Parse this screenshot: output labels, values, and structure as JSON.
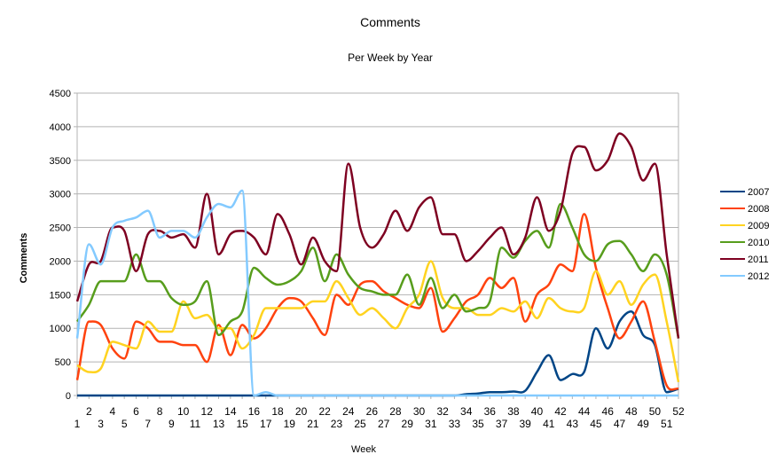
{
  "chart_data": {
    "type": "line",
    "title": "Comments",
    "subtitle": "Per Week by Year",
    "xlabel": "Week",
    "ylabel": "Comments",
    "ylim": [
      0,
      4500
    ],
    "yticks": [
      0,
      500,
      1000,
      1500,
      2000,
      2500,
      3000,
      3500,
      4000,
      4500
    ],
    "x": [
      1,
      2,
      3,
      4,
      5,
      6,
      7,
      8,
      9,
      10,
      11,
      12,
      13,
      14,
      15,
      16,
      17,
      18,
      19,
      20,
      21,
      22,
      23,
      24,
      25,
      26,
      27,
      28,
      29,
      30,
      31,
      32,
      33,
      34,
      35,
      36,
      37,
      38,
      39,
      40,
      41,
      42,
      43,
      44,
      45,
      46,
      47,
      48,
      49,
      50,
      51,
      52
    ],
    "grid": true,
    "legend_position": "right",
    "series": [
      {
        "name": "2007",
        "color": "#004586",
        "values": [
          0,
          0,
          0,
          0,
          0,
          0,
          0,
          0,
          0,
          0,
          0,
          0,
          0,
          0,
          0,
          0,
          0,
          0,
          0,
          0,
          0,
          0,
          0,
          0,
          0,
          0,
          0,
          0,
          0,
          0,
          0,
          0,
          0,
          20,
          30,
          50,
          50,
          60,
          70,
          350,
          600,
          230,
          320,
          350,
          1000,
          700,
          1100,
          1250,
          900,
          750,
          50,
          100
        ]
      },
      {
        "name": "2008",
        "color": "#ff420e",
        "values": [
          230,
          1100,
          1050,
          700,
          550,
          1100,
          1000,
          800,
          800,
          750,
          750,
          500,
          1050,
          600,
          1050,
          850,
          1000,
          1300,
          1450,
          1400,
          1150,
          900,
          1500,
          1350,
          1650,
          1700,
          1550,
          1450,
          1350,
          1300,
          1600,
          950,
          1150,
          1400,
          1500,
          1750,
          1600,
          1750,
          1100,
          1500,
          1650,
          1950,
          1850,
          2700,
          1900,
          1300,
          850,
          1100,
          1400,
          800,
          150,
          100
        ]
      },
      {
        "name": "2009",
        "color": "#ffd320",
        "values": [
          450,
          350,
          400,
          800,
          750,
          700,
          1100,
          950,
          950,
          1400,
          1150,
          1200,
          1000,
          1000,
          700,
          900,
          1300,
          1300,
          1300,
          1300,
          1400,
          1400,
          1700,
          1450,
          1200,
          1300,
          1150,
          1000,
          1300,
          1500,
          2000,
          1450,
          1300,
          1300,
          1200,
          1200,
          1300,
          1250,
          1400,
          1150,
          1450,
          1300,
          1250,
          1300,
          1850,
          1500,
          1700,
          1350,
          1650,
          1800,
          1100,
          200
        ]
      },
      {
        "name": "2010",
        "color": "#579d1c",
        "values": [
          1100,
          1350,
          1700,
          1700,
          1700,
          2100,
          1700,
          1700,
          1450,
          1350,
          1400,
          1700,
          900,
          1100,
          1250,
          1900,
          1750,
          1650,
          1700,
          1850,
          2200,
          1700,
          2100,
          1800,
          1600,
          1550,
          1500,
          1500,
          1800,
          1350,
          1750,
          1300,
          1500,
          1250,
          1300,
          1400,
          2200,
          2050,
          2300,
          2450,
          2200,
          2850,
          2500,
          2100,
          2000,
          2250,
          2300,
          2100,
          1850,
          2100,
          1800,
          850
        ]
      },
      {
        "name": "2011",
        "color": "#7e0021",
        "values": [
          1400,
          1950,
          2000,
          2500,
          2450,
          1850,
          2400,
          2450,
          2350,
          2400,
          2200,
          3000,
          2100,
          2400,
          2450,
          2350,
          2100,
          2700,
          2400,
          1950,
          2350,
          2000,
          1850,
          3450,
          2500,
          2200,
          2400,
          2750,
          2450,
          2800,
          2950,
          2400,
          2400,
          2000,
          2150,
          2350,
          2500,
          2100,
          2350,
          2950,
          2450,
          2750,
          3600,
          3700,
          3350,
          3500,
          3900,
          3700,
          3200,
          3450,
          2100,
          850
        ]
      },
      {
        "name": "2012",
        "color": "#83caff",
        "values": [
          850,
          2250,
          1950,
          2500,
          2600,
          2650,
          2750,
          2350,
          2450,
          2450,
          2350,
          2650,
          2850,
          2800,
          3050,
          0,
          50,
          0,
          0,
          0,
          0,
          0,
          0,
          0,
          0,
          0,
          0,
          0,
          0,
          0,
          0,
          0,
          0,
          0,
          0,
          0,
          0,
          0,
          0,
          0,
          0,
          0,
          0,
          0,
          0,
          0,
          0,
          0,
          0,
          0,
          0,
          0
        ]
      }
    ]
  }
}
